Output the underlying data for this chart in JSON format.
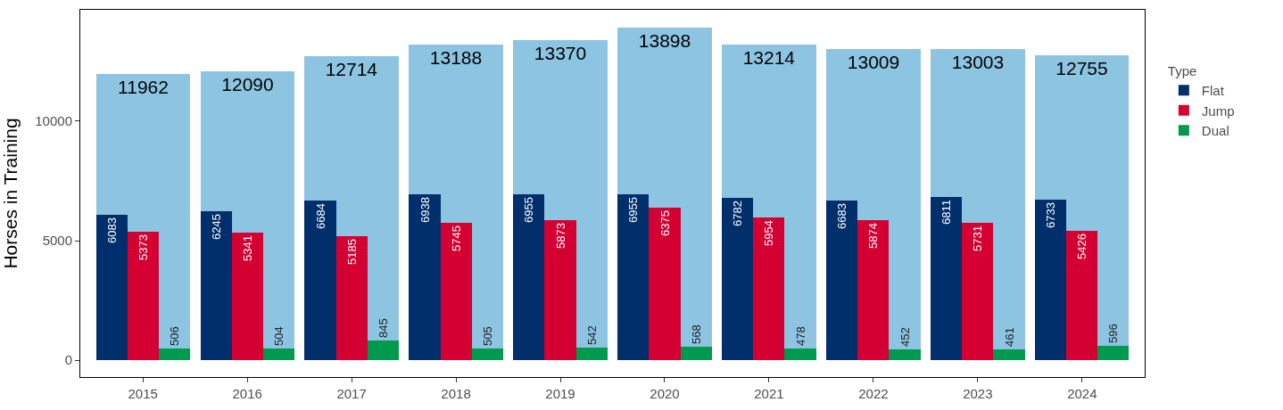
{
  "chart_data": {
    "type": "bar",
    "ylabel": "Horses in Training",
    "legend_title": "Type",
    "categories": [
      "2015",
      "2016",
      "2017",
      "2018",
      "2019",
      "2020",
      "2021",
      "2022",
      "2023",
      "2024"
    ],
    "series": [
      {
        "color": "#8dc4e2",
        "values": [
          11962,
          12090,
          12714,
          13188,
          13370,
          13898,
          13214,
          13009,
          13003,
          12755
        ]
      },
      {
        "name": "Flat",
        "color": "#002f6c",
        "values": [
          6083,
          6245,
          6684,
          6938,
          6955,
          6955,
          6782,
          6683,
          6811,
          6733
        ]
      },
      {
        "name": "Jump",
        "color": "#d50032",
        "values": [
          5373,
          5341,
          5185,
          5745,
          5873,
          6375,
          5954,
          5874,
          5731,
          5426
        ]
      },
      {
        "name": "Dual",
        "color": "#009a4e",
        "values": [
          506,
          504,
          845,
          505,
          542,
          568,
          478,
          452,
          461,
          596
        ]
      }
    ],
    "ylim": [
      -700,
      14650
    ],
    "yticks": [
      0,
      5000,
      10000
    ],
    "legend": "right",
    "data_labels": true
  }
}
